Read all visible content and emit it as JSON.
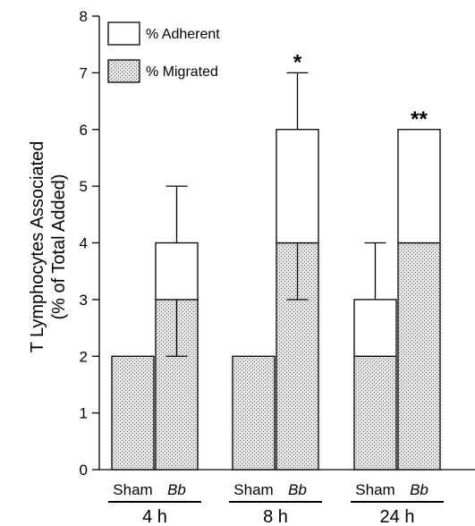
{
  "chart_data": {
    "type": "bar",
    "ylabel_lines": [
      "T Lymphocytes Associated",
      "(% of Total Added)"
    ],
    "ylim": [
      0,
      8
    ],
    "yticks": [
      0,
      1,
      2,
      3,
      4,
      5,
      6,
      7,
      8
    ],
    "legend": [
      {
        "name": "% Adherent",
        "pattern": "white"
      },
      {
        "name": "% Migrated",
        "pattern": "stipple"
      }
    ],
    "groups": [
      {
        "label": "4 h",
        "bars": [
          {
            "label": "Sham",
            "italic": false,
            "migrated": 2,
            "adherent": 0,
            "total": 2,
            "error_up": null,
            "error_down": null,
            "migrated_error_down": null,
            "annotation": ""
          },
          {
            "label": "Bb",
            "italic": true,
            "migrated": 3,
            "adherent": 1,
            "total": 4,
            "error_up": 5,
            "error_down": null,
            "migrated_error_down": 2,
            "annotation": ""
          }
        ]
      },
      {
        "label": "8 h",
        "bars": [
          {
            "label": "Sham",
            "italic": false,
            "migrated": 2,
            "adherent": 0,
            "total": 2,
            "error_up": null,
            "error_down": null,
            "migrated_error_down": null,
            "annotation": ""
          },
          {
            "label": "Bb",
            "italic": true,
            "migrated": 4,
            "adherent": 2,
            "total": 6,
            "error_up": 7,
            "error_down": null,
            "migrated_error_down": 3,
            "annotation": "*"
          }
        ]
      },
      {
        "label": "24 h",
        "bars": [
          {
            "label": "Sham",
            "italic": false,
            "migrated": 2,
            "adherent": 1,
            "total": 3,
            "error_up": 4,
            "error_down": null,
            "migrated_error_down": null,
            "annotation": ""
          },
          {
            "label": "Bb",
            "italic": true,
            "migrated": 4,
            "adherent": 2,
            "total": 6,
            "error_up": null,
            "error_down": null,
            "migrated_error_down": null,
            "annotation": "**"
          }
        ]
      }
    ]
  }
}
